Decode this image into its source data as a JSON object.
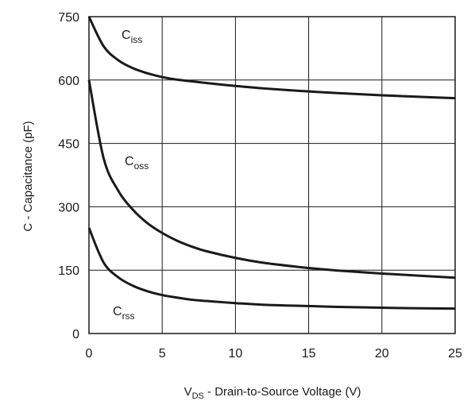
{
  "chart_data": {
    "type": "line",
    "xlabel": {
      "main": "V",
      "sub": "DS",
      "rest": " - Drain-to-Source Voltage (V)"
    },
    "ylabel": "C - Capacitance (pF)",
    "xlim": [
      0,
      25
    ],
    "ylim": [
      0,
      750
    ],
    "xticks": [
      "0",
      "5",
      "10",
      "15",
      "20",
      "25"
    ],
    "yticks": [
      "0",
      "150",
      "300",
      "450",
      "600",
      "750"
    ],
    "grid": true,
    "series": [
      {
        "name": "Ciss",
        "label_main": "C",
        "label_sub": "iss",
        "x": [
          0,
          1,
          2,
          3,
          4,
          5,
          6,
          7,
          8,
          10,
          12,
          15,
          17,
          20,
          22,
          25
        ],
        "y": [
          750,
          680,
          647,
          628,
          616,
          607,
          601,
          597,
          593,
          586,
          580,
          573,
          569,
          564,
          561,
          557
        ]
      },
      {
        "name": "Coss",
        "label_main": "C",
        "label_sub": "oss",
        "x": [
          0,
          1,
          2,
          3,
          4,
          5,
          6,
          7,
          8,
          10,
          12,
          15,
          17,
          20,
          22,
          25
        ],
        "y": [
          600,
          415,
          338,
          293,
          261,
          238,
          220,
          206,
          195,
          179,
          167,
          155,
          149,
          142,
          138,
          132
        ]
      },
      {
        "name": "Crss",
        "label_main": "C",
        "label_sub": "rss",
        "x": [
          0,
          1,
          2,
          3,
          4,
          5,
          6,
          7,
          8,
          10,
          12,
          15,
          17,
          20,
          22,
          25
        ],
        "y": [
          250,
          168,
          133,
          113,
          100,
          91,
          85,
          80,
          77,
          72,
          68,
          65,
          63,
          61,
          60,
          59
        ]
      }
    ]
  }
}
